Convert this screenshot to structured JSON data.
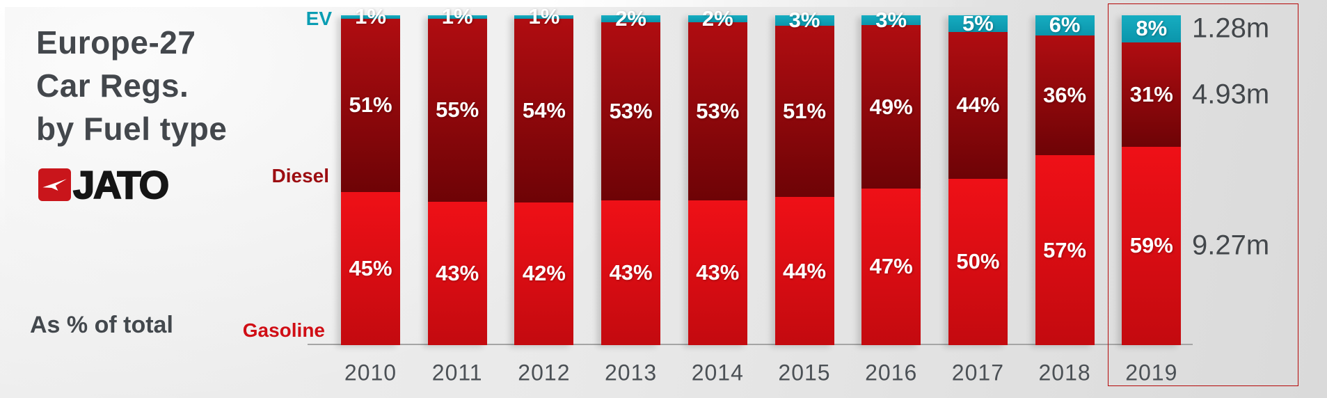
{
  "header": {
    "lines": [
      "Europe-27",
      "Car Regs.",
      "by Fuel type"
    ]
  },
  "subtitle": "As % of total",
  "logo": {
    "text": "JATO",
    "icon": "jato-arrow-icon",
    "box_color": "#c9151b"
  },
  "legend": {
    "ev": "EV",
    "diesel": "Diesel",
    "gasoline": "Gasoline"
  },
  "colors": {
    "ev": "#0da5ba",
    "diesel": "#9b0c10",
    "gasoline": "#d90e15",
    "highlight_outline": "#b50808",
    "text_dark": "#43474c"
  },
  "chart_data": {
    "type": "bar",
    "stacked": true,
    "title": "Europe-27 Car Regs. by Fuel type",
    "subtitle": "As % of total",
    "unit": "percent of total registrations",
    "categories": [
      "2010",
      "2011",
      "2012",
      "2013",
      "2014",
      "2015",
      "2016",
      "2017",
      "2018",
      "2019"
    ],
    "series": [
      {
        "name": "EV",
        "color": "#0da5ba",
        "values": [
          1,
          1,
          1,
          2,
          2,
          3,
          3,
          5,
          6,
          8
        ],
        "labels": [
          "1%",
          "1%",
          "1%",
          "2%",
          "2%",
          "3%",
          "3%",
          "5%",
          "6%",
          "8%"
        ]
      },
      {
        "name": "Diesel",
        "color": "#9b0c10",
        "values": [
          51,
          55,
          54,
          53,
          53,
          51,
          49,
          44,
          36,
          31
        ],
        "labels": [
          "51%",
          "55%",
          "54%",
          "53%",
          "53%",
          "51%",
          "49%",
          "44%",
          "36%",
          "31%"
        ]
      },
      {
        "name": "Gasoline",
        "color": "#d90e15",
        "values": [
          45,
          43,
          42,
          43,
          43,
          44,
          47,
          50,
          57,
          59
        ],
        "labels": [
          "45%",
          "43%",
          "42%",
          "43%",
          "43%",
          "44%",
          "47%",
          "50%",
          "57%",
          "59%"
        ]
      }
    ],
    "ylim": [
      0,
      100
    ],
    "grid": false,
    "legend_position": "left-of-first-bar",
    "highlight": {
      "year": "2019",
      "totals": [
        {
          "series": "EV",
          "label": "1.28m"
        },
        {
          "series": "Diesel",
          "label": "4.93m"
        },
        {
          "series": "Gasoline",
          "label": "9.27m"
        }
      ]
    }
  }
}
